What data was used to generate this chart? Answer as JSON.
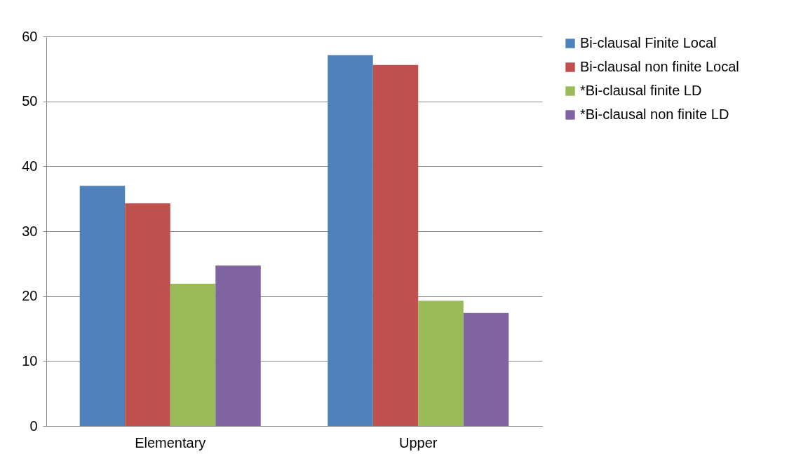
{
  "chart_data": {
    "type": "bar",
    "categories": [
      "Elementary",
      "Upper"
    ],
    "series": [
      {
        "name": "Bi-clausal Finite Local",
        "color": "#4f81bd",
        "values": [
          37.0,
          57.1
        ]
      },
      {
        "name": "Bi-clausal non finite Local",
        "color": "#c0504d",
        "values": [
          34.3,
          55.6
        ]
      },
      {
        "name": "*Bi-clausal finite LD",
        "color": "#9bbb59",
        "values": [
          21.9,
          19.3
        ]
      },
      {
        "name": "*Bi-clausal non finite LD",
        "color": "#8064a2",
        "values": [
          24.7,
          17.4
        ]
      }
    ],
    "ylim": [
      0,
      60
    ],
    "yticks": [
      0,
      10,
      20,
      30,
      40,
      50,
      60
    ],
    "grid": "y",
    "legend": "right"
  }
}
